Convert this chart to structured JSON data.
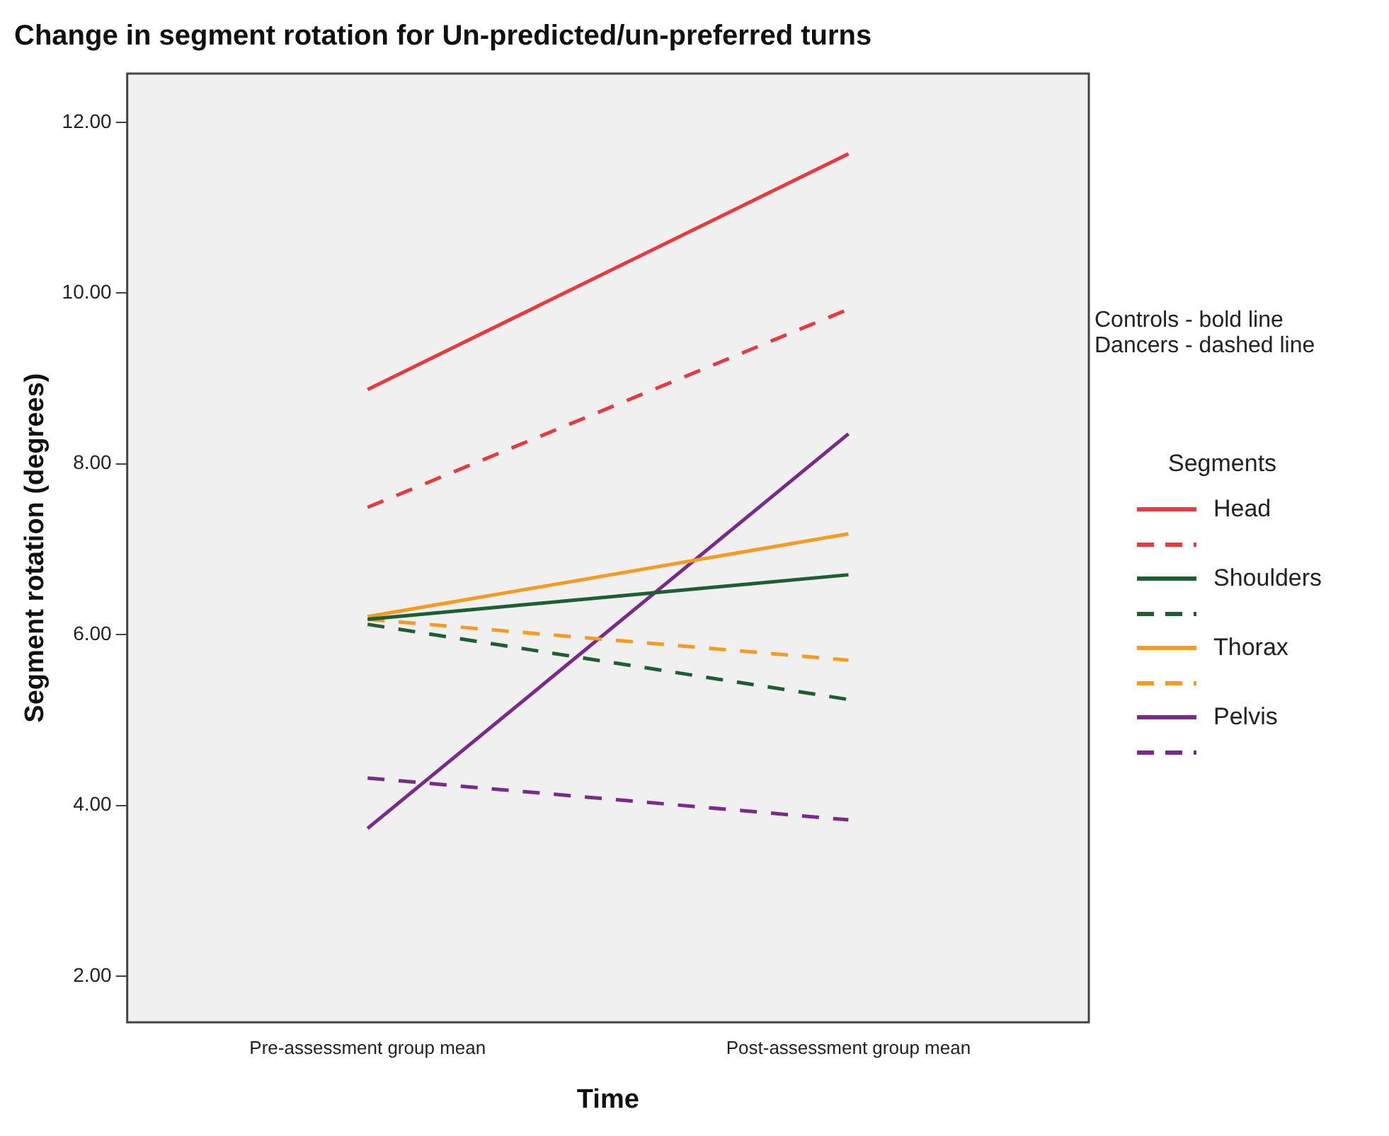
{
  "chart_data": {
    "type": "line",
    "title": "Change in segment rotation for Un-predicted/un-preferred turns",
    "xlabel": "Time",
    "ylabel": "Segment rotation (degrees)",
    "legend_title": "Segments",
    "legend": "right",
    "grid": false,
    "marker": "none",
    "categories": [
      "Pre-assessment group mean",
      "Post-assessment group mean"
    ],
    "ylim": [
      1.46,
      12.57
    ],
    "yticks": [
      {
        "value": 2,
        "label": "2.00"
      },
      {
        "value": 4,
        "label": "4.00"
      },
      {
        "value": 6,
        "label": "6.00"
      },
      {
        "value": 8,
        "label": "8.00"
      },
      {
        "value": 10,
        "label": "10.00"
      },
      {
        "value": 12,
        "label": "12.00"
      }
    ],
    "annotations": [
      "Controls - bold line",
      "Dancers - dashed line"
    ],
    "series": [
      {
        "name": "Head",
        "color": "#e8393f",
        "line_style": "solid",
        "values": [
          8.87,
          11.63
        ]
      },
      {
        "color": "#e8393f",
        "line_style": "dashed",
        "values": [
          7.49,
          9.81
        ]
      },
      {
        "name": "Shoulders",
        "color": "#1d5e32",
        "line_style": "solid",
        "values": [
          6.18,
          6.7
        ]
      },
      {
        "color": "#1d5e32",
        "line_style": "dashed",
        "values": [
          6.12,
          5.24
        ]
      },
      {
        "name": "Thorax",
        "color": "#f59b20",
        "line_style": "solid",
        "values": [
          6.21,
          7.18
        ]
      },
      {
        "color": "#f59b20",
        "line_style": "dashed",
        "values": [
          6.18,
          5.7
        ]
      },
      {
        "name": "Pelvis",
        "color": "#7b2a8c",
        "line_style": "solid",
        "values": [
          3.73,
          8.35
        ]
      },
      {
        "color": "#7b2a8c",
        "line_style": "dashed",
        "values": [
          4.32,
          3.83
        ]
      }
    ]
  }
}
